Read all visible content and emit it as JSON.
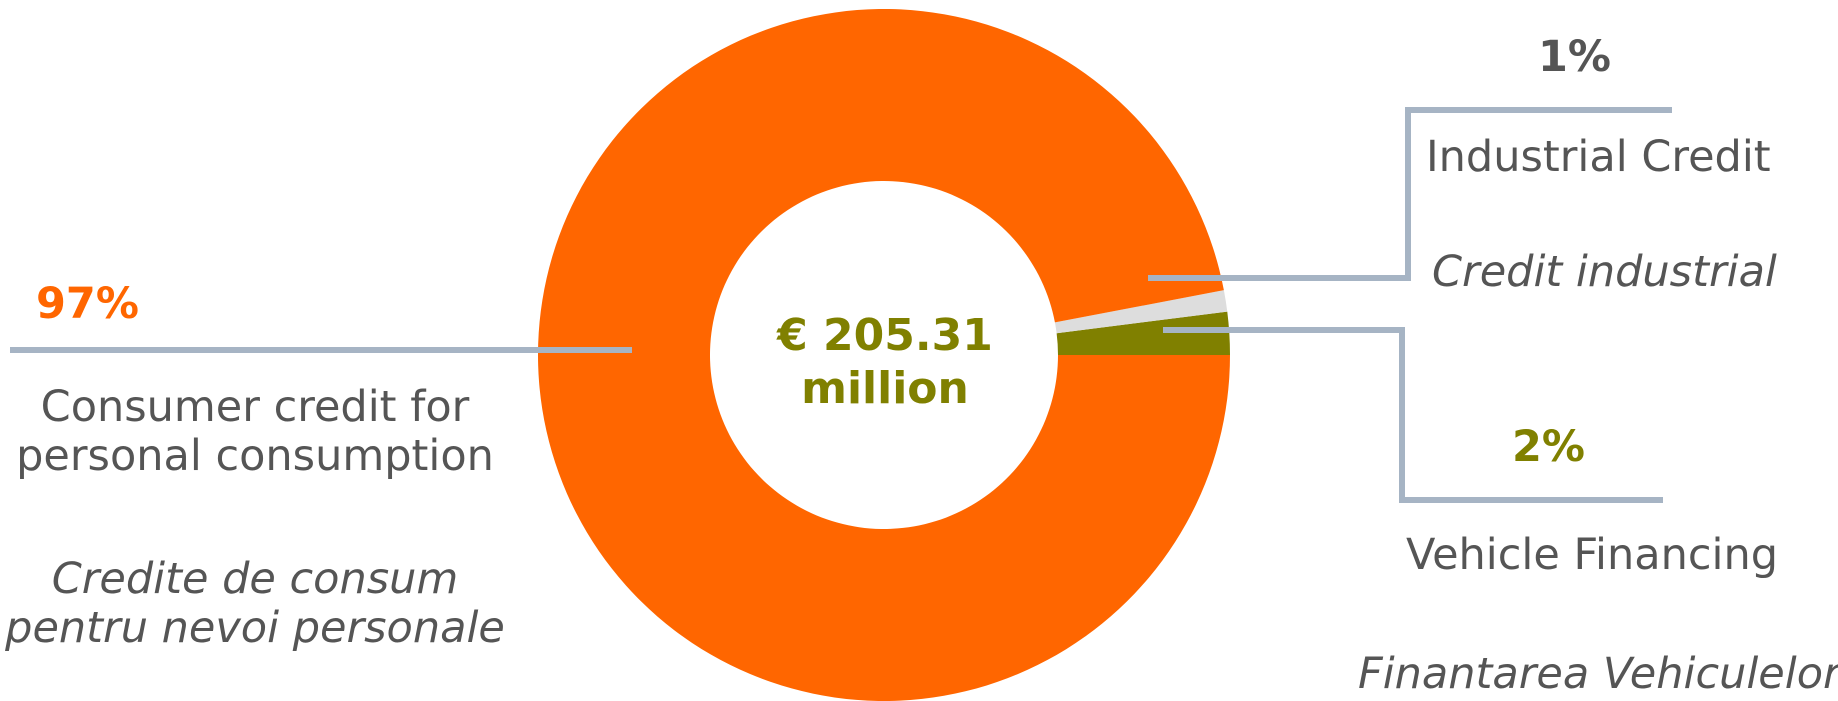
{
  "chart_data": {
    "type": "pie",
    "donut": true,
    "center_label": {
      "line1": "€ 205.31",
      "line2": "million"
    },
    "slices": [
      {
        "percent_label": "97%",
        "value": 97,
        "name_en_line1": "Consumer credit for",
        "name_en_line2": "personal consumption",
        "name_ro_line1": "Credite de consum",
        "name_ro_line2": "pentru nevoi personale",
        "color": "#FF6600"
      },
      {
        "percent_label": "1%",
        "value": 1,
        "name_en": "Industrial Credit",
        "name_ro": "Credit industrial",
        "color": "#DDDDDD"
      },
      {
        "percent_label": "2%",
        "value": 2,
        "name_en": "Vehicle Financing",
        "name_ro": "Finantarea Vehiculelor",
        "color": "#808000"
      }
    ],
    "colors": {
      "percent_consumer": "#FF6600",
      "percent_industrial": "#555555",
      "percent_vehicle": "#808000",
      "leader_line": "#A6B4C4"
    }
  }
}
